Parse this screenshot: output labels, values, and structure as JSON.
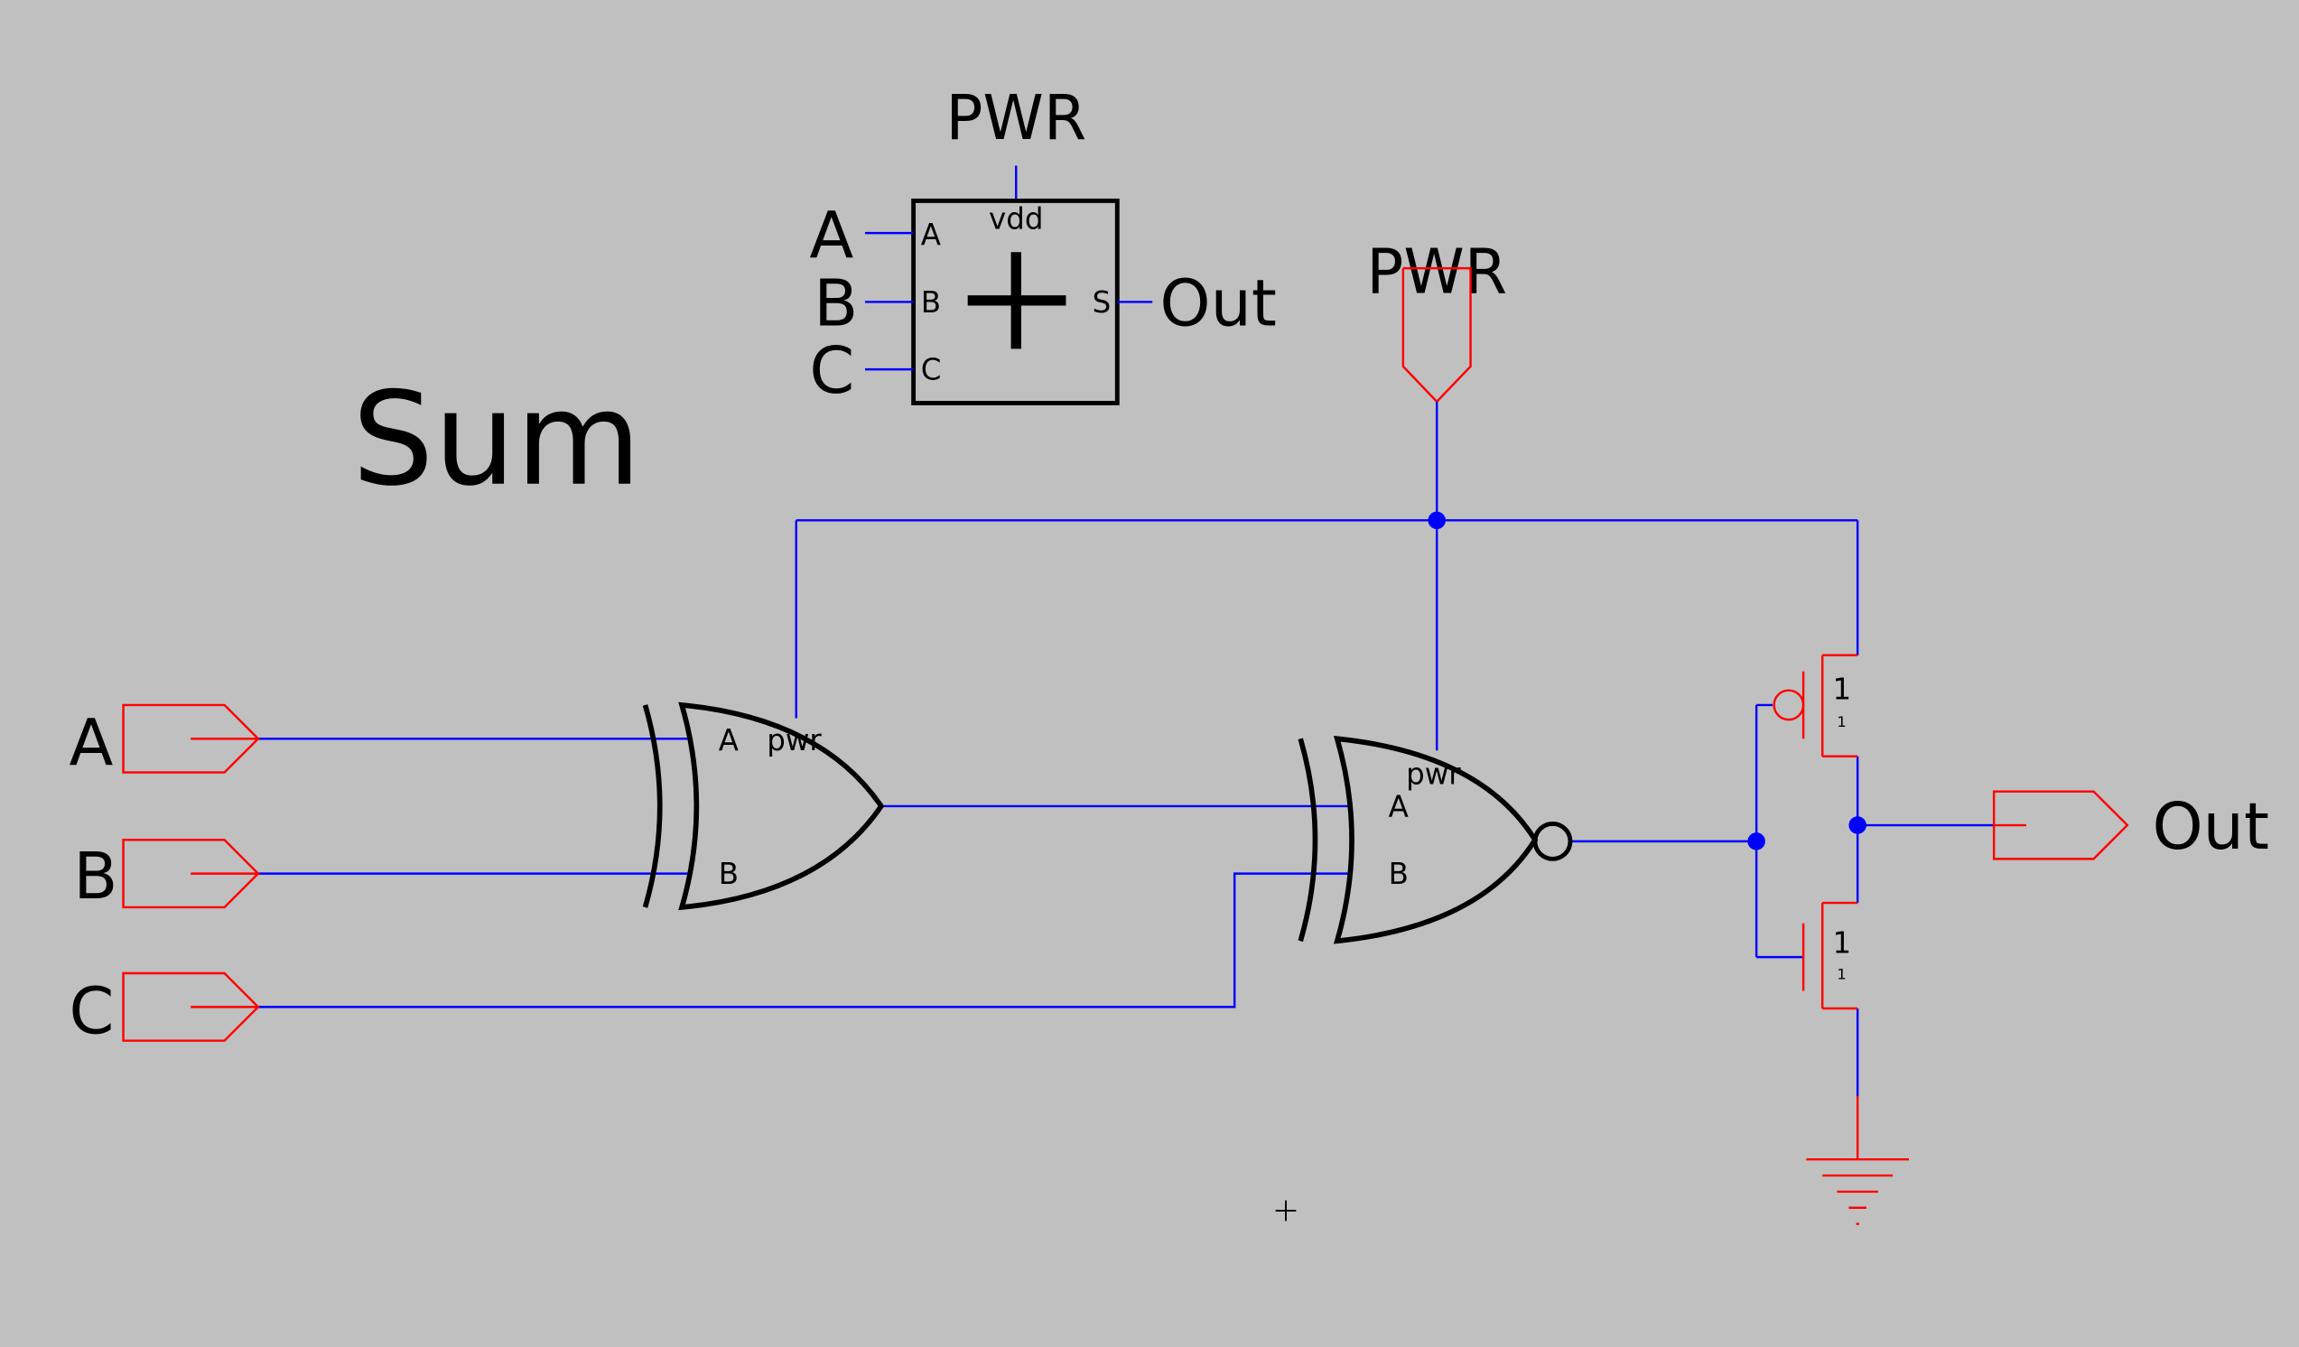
{
  "title": "Sum",
  "symbol": {
    "power_label": "PWR",
    "vdd_label": "vdd",
    "plus_glyph": "+",
    "inputs": [
      {
        "outer": "A",
        "inner": "A"
      },
      {
        "outer": "B",
        "inner": "B"
      },
      {
        "outer": "C",
        "inner": "C"
      }
    ],
    "output": {
      "inner": "S",
      "outer": "Out"
    }
  },
  "schematic": {
    "power_label": "PWR",
    "inputs": [
      "A",
      "B",
      "C"
    ],
    "output": "Out",
    "xor_gate": {
      "pin_a": "A",
      "pin_b": "B",
      "pin_pwr": "pwr"
    },
    "xnor_gate": {
      "pin_a": "A",
      "pin_b": "B",
      "pin_pwr": "pwr"
    },
    "pmos": {
      "width": "1",
      "length": "1"
    },
    "nmos": {
      "width": "1",
      "length": "1"
    }
  },
  "colors": {
    "background": "#c0c0c0",
    "wire": "#0000ff",
    "device": "#ff0000",
    "outline": "#000000"
  }
}
